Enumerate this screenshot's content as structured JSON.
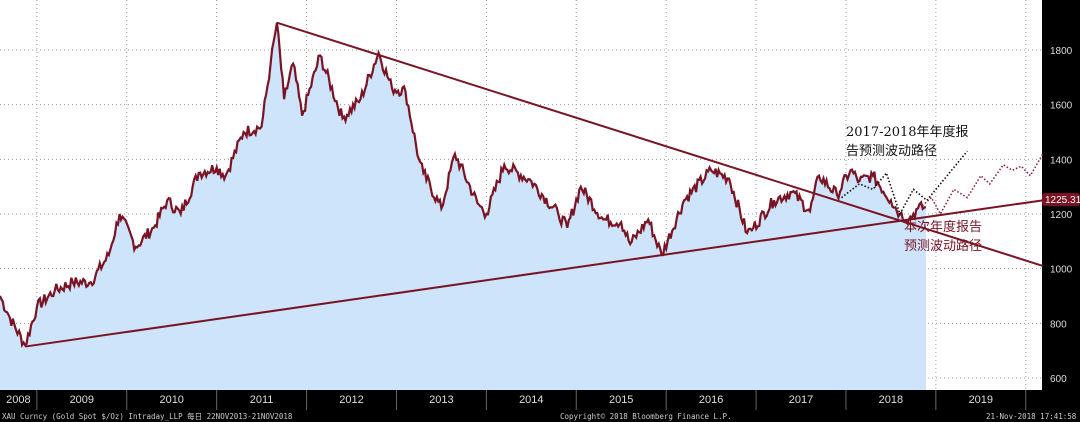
{
  "chart_data": {
    "type": "area",
    "title": "",
    "xlabel": "",
    "ylabel": "",
    "ylim": [
      560,
      1920
    ],
    "xlim": [
      2008.59,
      2020.19
    ],
    "yticks": [
      600,
      800,
      1000,
      1200,
      1400,
      1600,
      1800
    ],
    "xticks": [
      "2008",
      "2009",
      "2010",
      "2011",
      "2012",
      "2013",
      "2014",
      "2015",
      "2016",
      "2017",
      "2018",
      "2019"
    ],
    "last_price_label": "1225.31",
    "series": [
      {
        "name": "XAU Gold Spot",
        "x": [
          2008.59,
          2008.7,
          2008.87,
          2009.0,
          2009.2,
          2009.4,
          2009.6,
          2009.8,
          2009.92,
          2010.1,
          2010.3,
          2010.45,
          2010.6,
          2010.8,
          2011.0,
          2011.1,
          2011.3,
          2011.5,
          2011.6,
          2011.67,
          2011.75,
          2011.85,
          2011.95,
          2012.15,
          2012.4,
          2012.6,
          2012.8,
          2012.95,
          2013.1,
          2013.25,
          2013.3,
          2013.5,
          2013.65,
          2013.9,
          2014.0,
          2014.2,
          2014.5,
          2014.8,
          2014.9,
          2015.05,
          2015.3,
          2015.5,
          2015.6,
          2015.8,
          2015.95,
          2016.2,
          2016.5,
          2016.7,
          2016.9,
          2016.97,
          2017.2,
          2017.4,
          2017.6,
          2017.7,
          2017.9,
          2018.05,
          2018.15,
          2018.3,
          2018.5,
          2018.6,
          2018.7,
          2018.8,
          2018.89
        ],
        "values": [
          900,
          820,
          720,
          860,
          920,
          950,
          950,
          1050,
          1200,
          1080,
          1150,
          1250,
          1200,
          1350,
          1370,
          1340,
          1500,
          1520,
          1750,
          1900,
          1620,
          1750,
          1560,
          1780,
          1550,
          1620,
          1790,
          1660,
          1650,
          1400,
          1350,
          1220,
          1420,
          1240,
          1200,
          1380,
          1320,
          1200,
          1150,
          1300,
          1180,
          1170,
          1090,
          1180,
          1050,
          1250,
          1360,
          1330,
          1130,
          1150,
          1250,
          1280,
          1210,
          1340,
          1270,
          1360,
          1320,
          1340,
          1250,
          1200,
          1180,
          1220,
          1225
        ]
      },
      {
        "name": "2017-2018 forecast path",
        "style": "dotted-black",
        "x": [
          2017.95,
          2018.15,
          2018.3,
          2018.45,
          2018.6,
          2018.75,
          2018.9,
          2019.35
        ],
        "values": [
          1260,
          1310,
          1290,
          1350,
          1200,
          1290,
          1250,
          1430
        ]
      },
      {
        "name": "current forecast path",
        "style": "dotted-maroon",
        "x": [
          2018.85,
          2018.95,
          2019.05,
          2019.2,
          2019.35,
          2019.5,
          2019.6,
          2019.75,
          2019.85,
          2019.95,
          2020.05,
          2020.19
        ],
        "values": [
          1230,
          1260,
          1200,
          1290,
          1260,
          1340,
          1310,
          1380,
          1360,
          1375,
          1340,
          1420
        ]
      }
    ],
    "trendlines": [
      {
        "name": "resistance",
        "x": [
          2011.67,
          2020.19
        ],
        "values": [
          1900,
          1010
        ]
      },
      {
        "name": "support",
        "x": [
          2008.87,
          2020.19
        ],
        "values": [
          715,
          1250
        ]
      }
    ],
    "annotations": {
      "old_forecast": [
        "2017-2018年年度报",
        "告预测波动路径"
      ],
      "new_forecast": [
        "本次年度报告",
        "预测波动路径"
      ]
    }
  },
  "footer": {
    "left": "XAU Curncy (Gold Spot  $/Oz) Intraday_LLP  每日 22NOV2013-21NOV2018",
    "center": "Copyright© 2018 Bloomberg Finance L.P.",
    "right": "21-Nov-2018 17:41:58"
  },
  "colors": {
    "line": "#7a1424",
    "fill": "#cde4fa",
    "bg": "#ffffff"
  }
}
